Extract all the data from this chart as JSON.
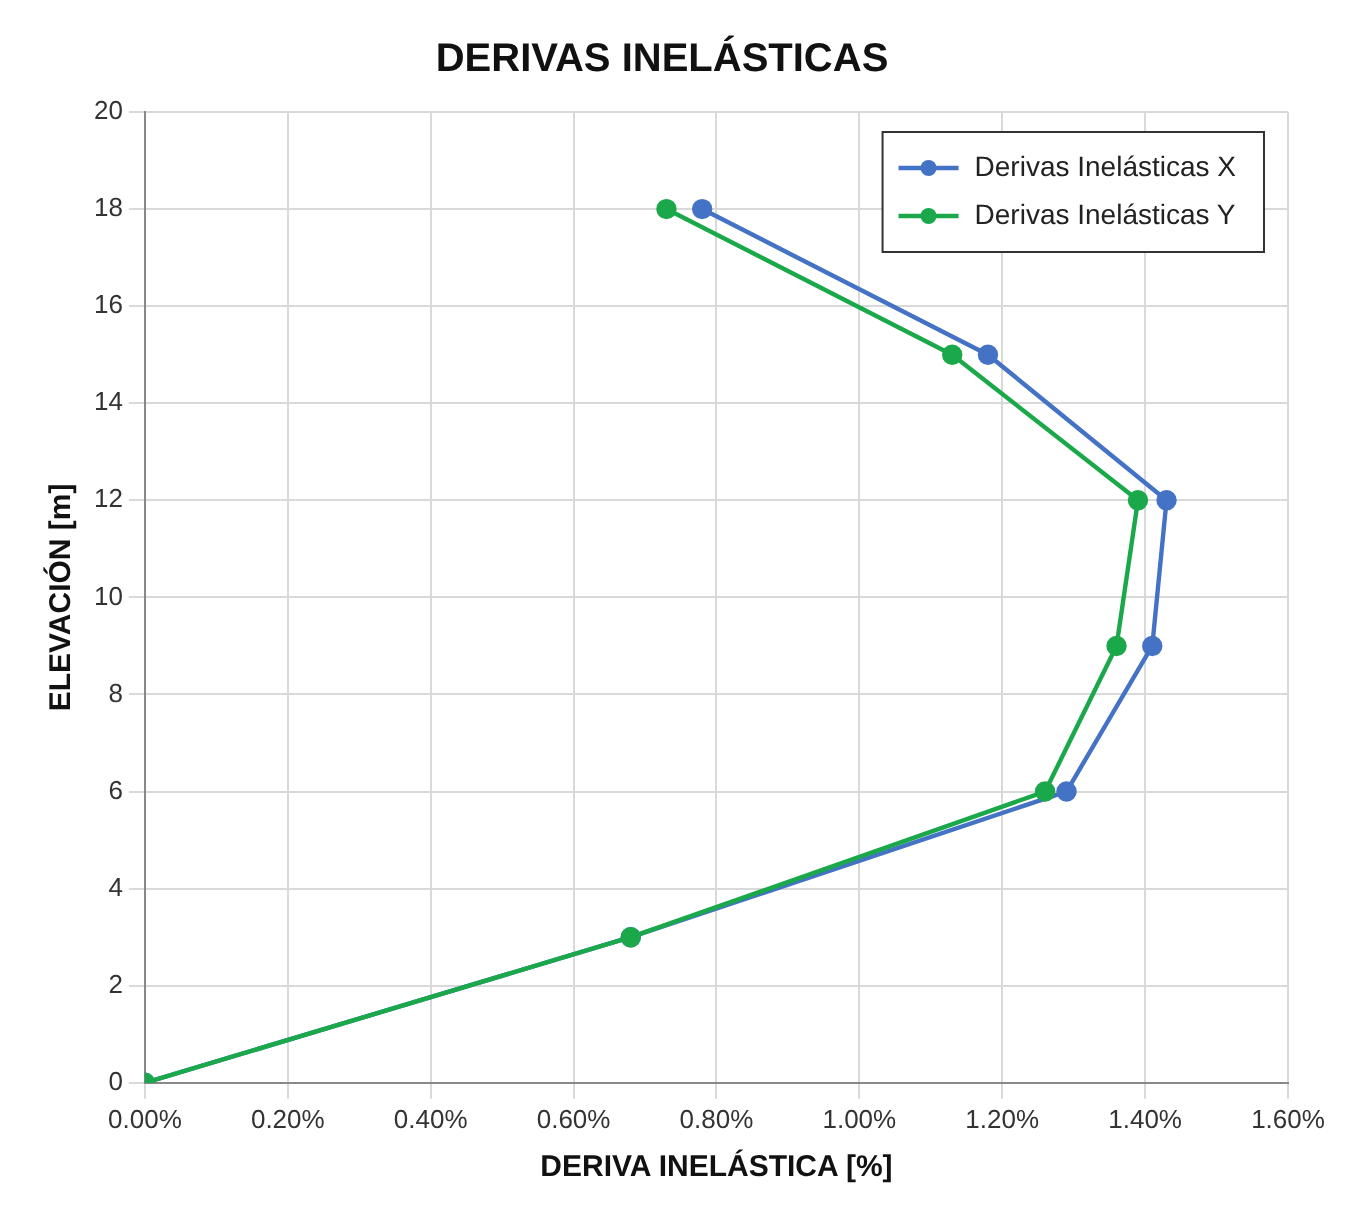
{
  "chart_data": {
    "type": "line",
    "title": "DERIVAS INELÁSTICAS",
    "xlabel": "DERIVA INELÁSTICA [%]",
    "ylabel": "ELEVACIÓN [m]",
    "series": [
      {
        "name": "Derivas Inelásticas X",
        "color": "#4472c4",
        "x": [
          0,
          0.68,
          1.29,
          1.41,
          1.43,
          1.18,
          0.78
        ],
        "values": [
          0,
          3,
          6,
          9,
          12,
          15,
          18
        ]
      },
      {
        "name": "Derivas Inelásticas Y",
        "color": "#1aa84a",
        "x": [
          0,
          0.68,
          1.26,
          1.36,
          1.39,
          1.13,
          0.73
        ],
        "values": [
          0,
          3,
          6,
          9,
          12,
          15,
          18
        ]
      }
    ],
    "xlim": [
      0,
      1.6
    ],
    "xticks": [
      {
        "value": 0,
        "label": "0.00%"
      },
      {
        "value": 0.2,
        "label": "0.20%"
      },
      {
        "value": 0.4,
        "label": "0.40%"
      },
      {
        "value": 0.6,
        "label": "0.60%"
      },
      {
        "value": 0.8,
        "label": "0.80%"
      },
      {
        "value": 1,
        "label": "1.00%"
      },
      {
        "value": 1.2,
        "label": "1.20%"
      },
      {
        "value": 1.4,
        "label": "1.40%"
      },
      {
        "value": 1.6,
        "label": "1.60%"
      }
    ],
    "ylim": [
      0,
      20
    ],
    "yticks": [
      0,
      2,
      4,
      6,
      8,
      10,
      12,
      14,
      16,
      18,
      20
    ],
    "grid": true,
    "legend": "top right",
    "marker": "circle",
    "line_style": "solid"
  }
}
